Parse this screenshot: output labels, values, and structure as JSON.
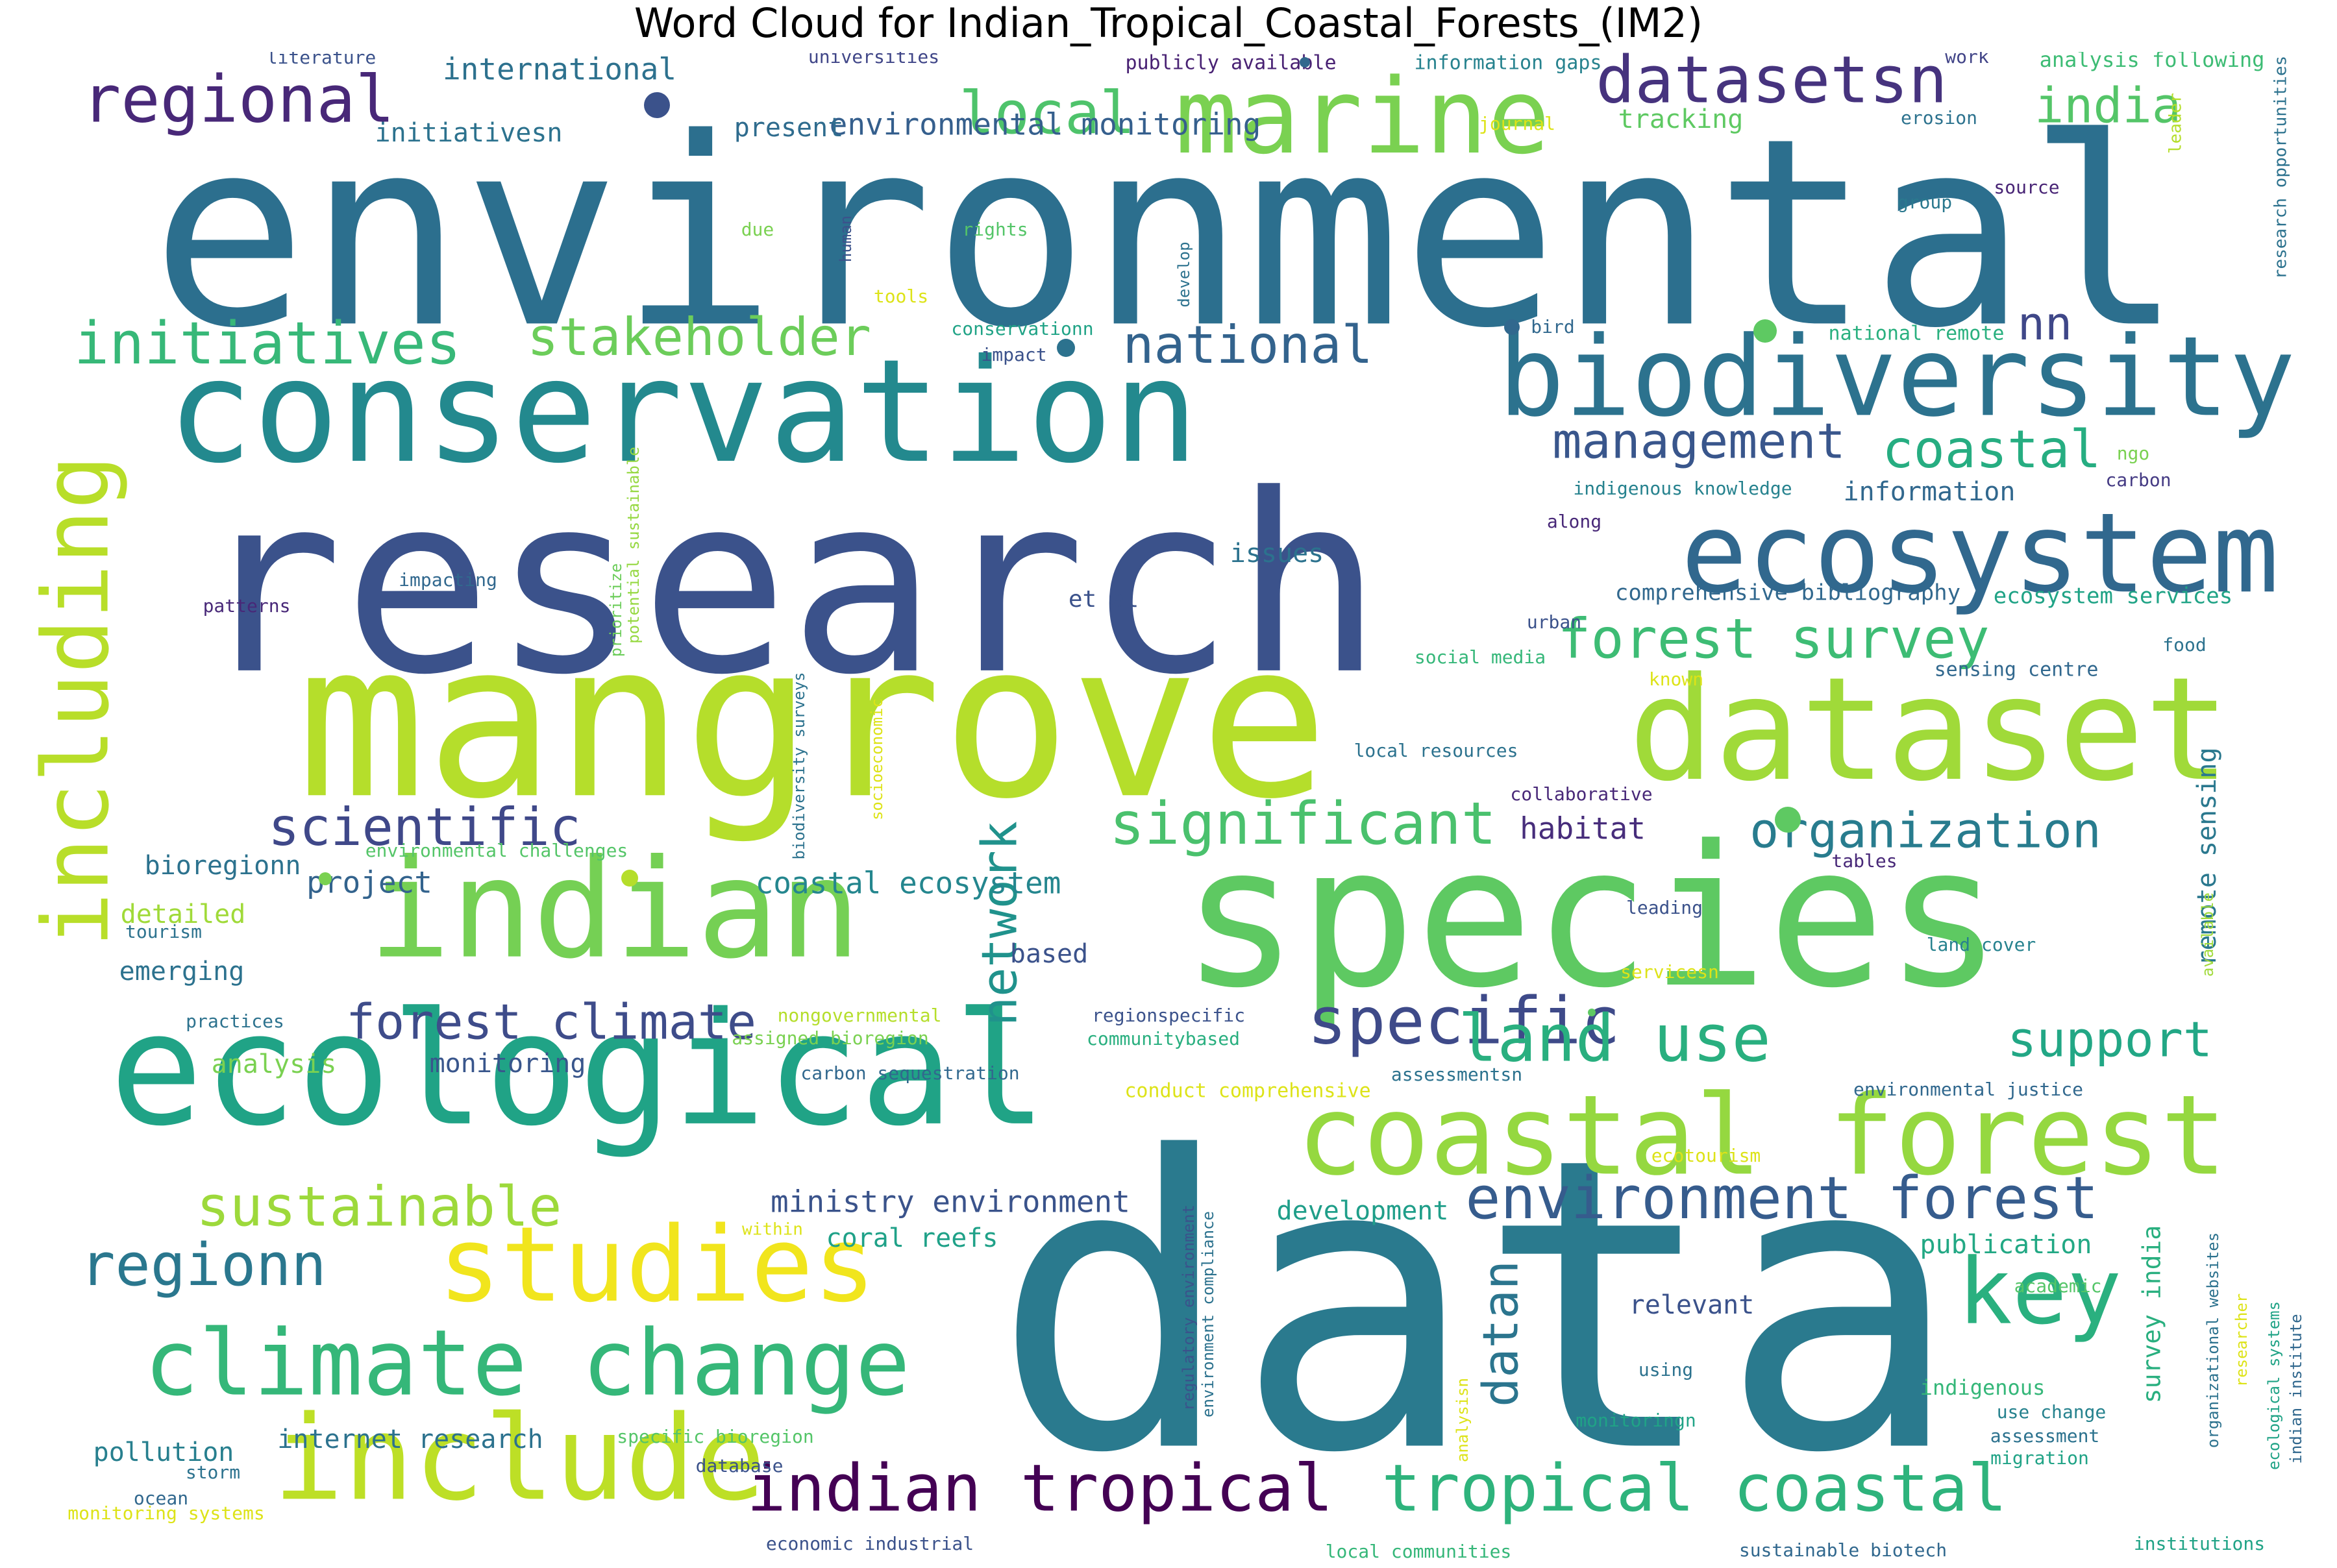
{
  "title": "Word Cloud for Indian_Tropical_Coastal_Forests_(IM2)",
  "words": [
    {
      "text": "environmental",
      "color": "#2c6f8e",
      "size": 1.0
    },
    {
      "text": "research",
      "color": "#3b528b",
      "size": 0.92
    },
    {
      "text": "data",
      "color": "#2a7a8e",
      "size": 0.9
    },
    {
      "text": "mangrove",
      "color": "#b5de2b",
      "size": 0.82
    },
    {
      "text": "species",
      "color": "#5ec962",
      "size": 0.8
    },
    {
      "text": "conservation",
      "color": "#23898e",
      "size": 0.62
    },
    {
      "text": "ecological",
      "color": "#20a386",
      "size": 0.62
    },
    {
      "text": "dataset",
      "color": "#a0da39",
      "size": 0.52
    },
    {
      "text": "indian",
      "color": "#75d054",
      "size": 0.5
    },
    {
      "text": "biodiversity",
      "color": "#2c728e",
      "size": 0.42
    },
    {
      "text": "ecosystem",
      "color": "#31688e",
      "size": 0.38
    },
    {
      "text": "coastal forest",
      "color": "#95d840",
      "size": 0.37
    },
    {
      "text": "marine",
      "color": "#7ad151",
      "size": 0.33
    },
    {
      "text": "include",
      "color": "#bddf26",
      "size": 0.38
    },
    {
      "text": "studies",
      "color": "#f1e51d",
      "size": 0.34
    },
    {
      "text": "climate change",
      "color": "#35b779",
      "size": 0.3
    },
    {
      "text": "including",
      "color": "#b8de29",
      "size": 0.3
    },
    {
      "text": "key",
      "color": "#2ab07f",
      "size": 0.3
    },
    {
      "text": "datasetsn",
      "color": "#46337e",
      "size": 0.22
    },
    {
      "text": "regional",
      "color": "#482878",
      "size": 0.22
    },
    {
      "text": "indian tropical",
      "color": "#440154",
      "size": 0.22
    },
    {
      "text": "tropical coastal",
      "color": "#2eb37c",
      "size": 0.22
    },
    {
      "text": "specific",
      "color": "#3e4a89",
      "size": 0.22
    },
    {
      "text": "land use",
      "color": "#29af7f",
      "size": 0.22
    },
    {
      "text": "significant",
      "color": "#4ac16d",
      "size": 0.2
    },
    {
      "text": "environment forest",
      "color": "#365c8d",
      "size": 0.18
    },
    {
      "text": "local",
      "color": "#4ec36b",
      "size": 0.2
    },
    {
      "text": "initiatives",
      "color": "#37b878",
      "size": 0.18
    },
    {
      "text": "stakeholder",
      "color": "#6ccd5a",
      "size": 0.16
    },
    {
      "text": "national",
      "color": "#33638d",
      "size": 0.16
    },
    {
      "text": "regionn",
      "color": "#2a778e",
      "size": 0.18
    },
    {
      "text": "sustainable",
      "color": "#9dd93b",
      "size": 0.17
    },
    {
      "text": "scientific",
      "color": "#3f4889",
      "size": 0.16
    },
    {
      "text": "forest survey",
      "color": "#3dbc74",
      "size": 0.17
    },
    {
      "text": "management",
      "color": "#39568c",
      "size": 0.15
    },
    {
      "text": "coastal",
      "color": "#26ad81",
      "size": 0.16
    },
    {
      "text": "forest climate",
      "color": "#3e4c8a",
      "size": 0.15
    },
    {
      "text": "organization",
      "color": "#287c8e",
      "size": 0.15
    },
    {
      "text": "support",
      "color": "#22a785",
      "size": 0.15
    },
    {
      "text": "india",
      "color": "#54c568",
      "size": 0.15
    },
    {
      "text": "network",
      "color": "#20928c",
      "size": 0.15
    },
    {
      "text": "datan",
      "color": "#2b758e",
      "size": 0.15
    },
    {
      "text": "nn",
      "color": "#3f4788",
      "size": 0.14
    },
    {
      "text": "international",
      "color": "#2d718e",
      "size": 0.09
    },
    {
      "text": "environmental monitoring",
      "color": "#355f8d",
      "size": 0.09
    },
    {
      "text": "ministry environment",
      "color": "#3a538b",
      "size": 0.09
    },
    {
      "text": "present",
      "color": "#2f6c8e",
      "size": 0.08
    },
    {
      "text": "tracking",
      "color": "#5ec962",
      "size": 0.08
    },
    {
      "text": "initiativesn",
      "color": "#2c728e",
      "size": 0.08
    },
    {
      "text": "information",
      "color": "#31688e",
      "size": 0.08
    },
    {
      "text": "habitat",
      "color": "#472d7b",
      "size": 0.09
    },
    {
      "text": "project",
      "color": "#33638d",
      "size": 0.09
    },
    {
      "text": "coastal ecosystem",
      "color": "#24868e",
      "size": 0.09
    },
    {
      "text": "bioregionn",
      "color": "#2c728e",
      "size": 0.08
    },
    {
      "text": "detailed",
      "color": "#a0da39",
      "size": 0.08
    },
    {
      "text": "emerging",
      "color": "#2c728e",
      "size": 0.08
    },
    {
      "text": "based",
      "color": "#3b528b",
      "size": 0.08
    },
    {
      "text": "monitoring",
      "color": "#39568c",
      "size": 0.08
    },
    {
      "text": "analysis",
      "color": "#7ad151",
      "size": 0.08
    },
    {
      "text": "development",
      "color": "#1f9e89",
      "size": 0.08
    },
    {
      "text": "coral reefs",
      "color": "#1fa188",
      "size": 0.08
    },
    {
      "text": "publication",
      "color": "#22a884",
      "size": 0.08
    },
    {
      "text": "relevant",
      "color": "#3b528b",
      "size": 0.08
    },
    {
      "text": "pollution",
      "color": "#277f8e",
      "size": 0.08
    },
    {
      "text": "internet research",
      "color": "#2c728e",
      "size": 0.08
    },
    {
      "text": "comprehensive bibliography",
      "color": "#31688e",
      "size": 0.07
    },
    {
      "text": "ecosystem services",
      "color": "#20a386",
      "size": 0.07
    },
    {
      "text": "issues",
      "color": "#2c728e",
      "size": 0.08
    },
    {
      "text": "et al",
      "color": "#3b528b",
      "size": 0.07
    },
    {
      "text": "remote sensing",
      "color": "#2a788e",
      "size": 0.08
    },
    {
      "text": "survey india",
      "color": "#29af7f",
      "size": 0.08
    },
    {
      "text": "publicly available",
      "color": "#482173",
      "size": 0.06
    },
    {
      "text": "information gaps",
      "color": "#26828e",
      "size": 0.06
    },
    {
      "text": "analysis following",
      "color": "#3dbc74",
      "size": 0.06
    },
    {
      "text": "universities",
      "color": "#404688",
      "size": 0.05
    },
    {
      "text": "literature",
      "color": "#3b528b",
      "size": 0.05
    },
    {
      "text": "work",
      "color": "#414487",
      "size": 0.05
    },
    {
      "text": "journal",
      "color": "#dde318",
      "size": 0.05
    },
    {
      "text": "erosion",
      "color": "#2c728e",
      "size": 0.05
    },
    {
      "text": "source",
      "color": "#482475",
      "size": 0.05
    },
    {
      "text": "group",
      "color": "#2a788e",
      "size": 0.05
    },
    {
      "text": "leader",
      "color": "#b5de2b",
      "size": 0.04
    },
    {
      "text": "research opportunities",
      "color": "#2c728e",
      "size": 0.05
    },
    {
      "text": "due",
      "color": "#7ad151",
      "size": 0.05
    },
    {
      "text": "human",
      "color": "#3b528b",
      "size": 0.04
    },
    {
      "text": "rights",
      "color": "#54c568",
      "size": 0.05
    },
    {
      "text": "develop",
      "color": "#2c728e",
      "size": 0.04
    },
    {
      "text": "tools",
      "color": "#dde318",
      "size": 0.05
    },
    {
      "text": "conservationn",
      "color": "#20a386",
      "size": 0.05
    },
    {
      "text": "impact",
      "color": "#3b528b",
      "size": 0.05
    },
    {
      "text": "bird",
      "color": "#31688e",
      "size": 0.05
    },
    {
      "text": "national remote",
      "color": "#2ab07f",
      "size": 0.05
    },
    {
      "text": "ngo",
      "color": "#7ad151",
      "size": 0.05
    },
    {
      "text": "carbon",
      "color": "#443a83",
      "size": 0.05
    },
    {
      "text": "indigenous knowledge",
      "color": "#26828e",
      "size": 0.05
    },
    {
      "text": "along",
      "color": "#482878",
      "size": 0.05
    },
    {
      "text": "potential sustainable",
      "color": "#95d840",
      "size": 0.04
    },
    {
      "text": "prioritize",
      "color": "#6ccd5a",
      "size": 0.04
    },
    {
      "text": "patterns",
      "color": "#482878",
      "size": 0.05
    },
    {
      "text": "impacting",
      "color": "#31688e",
      "size": 0.05
    },
    {
      "text": "urban",
      "color": "#3b528b",
      "size": 0.05
    },
    {
      "text": "food",
      "color": "#2c728e",
      "size": 0.05
    },
    {
      "text": "social media",
      "color": "#35b779",
      "size": 0.05
    },
    {
      "text": "sensing centre",
      "color": "#31688e",
      "size": 0.06
    },
    {
      "text": "known",
      "color": "#dde318",
      "size": 0.05
    },
    {
      "text": "biodiversity surveys",
      "color": "#2c728e",
      "size": 0.04
    },
    {
      "text": "socioeconomic",
      "color": "#dde318",
      "size": 0.04
    },
    {
      "text": "local resources",
      "color": "#2c728e",
      "size": 0.05
    },
    {
      "text": "collaborative",
      "color": "#482878",
      "size": 0.05
    },
    {
      "text": "environmental challenges",
      "color": "#54c568",
      "size": 0.05
    },
    {
      "text": "tables",
      "color": "#482878",
      "size": 0.05
    },
    {
      "text": "leading",
      "color": "#3b528b",
      "size": 0.05
    },
    {
      "text": "available",
      "color": "#a0da39",
      "size": 0.04
    },
    {
      "text": "tourism",
      "color": "#2c728e",
      "size": 0.05
    },
    {
      "text": "land cover",
      "color": "#26828e",
      "size": 0.05
    },
    {
      "text": "servicesn",
      "color": "#dde318",
      "size": 0.05
    },
    {
      "text": "practices",
      "color": "#2c728e",
      "size": 0.05
    },
    {
      "text": "nongovernmental",
      "color": "#b5de2b",
      "size": 0.05
    },
    {
      "text": "assigned bioregion",
      "color": "#7ad151",
      "size": 0.05
    },
    {
      "text": "regionspecific",
      "color": "#3b528b",
      "size": 0.05
    },
    {
      "text": "communitybased",
      "color": "#29af7f",
      "size": 0.05
    },
    {
      "text": "carbon sequestration",
      "color": "#31688e",
      "size": 0.05
    },
    {
      "text": "conduct comprehensive",
      "color": "#dde318",
      "size": 0.05
    },
    {
      "text": "assessmentsn",
      "color": "#2c728e",
      "size": 0.05
    },
    {
      "text": "environmental justice",
      "color": "#31688e",
      "size": 0.05
    },
    {
      "text": "ecotourism",
      "color": "#dde318",
      "size": 0.05
    },
    {
      "text": "within",
      "color": "#dde318",
      "size": 0.05
    },
    {
      "text": "regulatory environment",
      "color": "#3b528b",
      "size": 0.04
    },
    {
      "text": "environment compliance",
      "color": "#2c728e",
      "size": 0.04
    },
    {
      "text": "academic",
      "color": "#54c568",
      "size": 0.05
    },
    {
      "text": "organizational websites",
      "color": "#2c728e",
      "size": 0.04
    },
    {
      "text": "researcher",
      "color": "#dde318",
      "size": 0.04
    },
    {
      "text": "ecological systems",
      "color": "#20a386",
      "size": 0.04
    },
    {
      "text": "indian institute",
      "color": "#31688e",
      "size": 0.04
    },
    {
      "text": "using",
      "color": "#2c728e",
      "size": 0.05
    },
    {
      "text": "analysisn",
      "color": "#dde318",
      "size": 0.04
    },
    {
      "text": "monitoringn",
      "color": "#20a386",
      "size": 0.05
    },
    {
      "text": "indigenous",
      "color": "#35b779",
      "size": 0.06
    },
    {
      "text": "use change",
      "color": "#26828e",
      "size": 0.05
    },
    {
      "text": "assessment",
      "color": "#2c728e",
      "size": 0.05
    },
    {
      "text": "migration",
      "color": "#20a386",
      "size": 0.05
    },
    {
      "text": "specific bioregion",
      "color": "#54c568",
      "size": 0.05
    },
    {
      "text": "storm",
      "color": "#2c728e",
      "size": 0.05
    },
    {
      "text": "database",
      "color": "#3b528b",
      "size": 0.05
    },
    {
      "text": "ocean",
      "color": "#31688e",
      "size": 0.05
    },
    {
      "text": "monitoring systems",
      "color": "#dde318",
      "size": 0.05
    },
    {
      "text": "economic industrial",
      "color": "#3b528b",
      "size": 0.05
    },
    {
      "text": "local communities",
      "color": "#35b779",
      "size": 0.05
    },
    {
      "text": "sustainable biotech",
      "color": "#31688e",
      "size": 0.05
    },
    {
      "text": "institutions",
      "color": "#20a386",
      "size": 0.05
    }
  ],
  "dots": [
    {
      "color": "#3b528b"
    },
    {
      "color": "#2c728e"
    },
    {
      "color": "#31688e"
    },
    {
      "color": "#5ec962"
    },
    {
      "color": "#5ec962"
    },
    {
      "color": "#b5de2b"
    },
    {
      "color": "#7ad151"
    },
    {
      "color": "#31688e"
    },
    {
      "color": "#5ec962"
    }
  ]
}
